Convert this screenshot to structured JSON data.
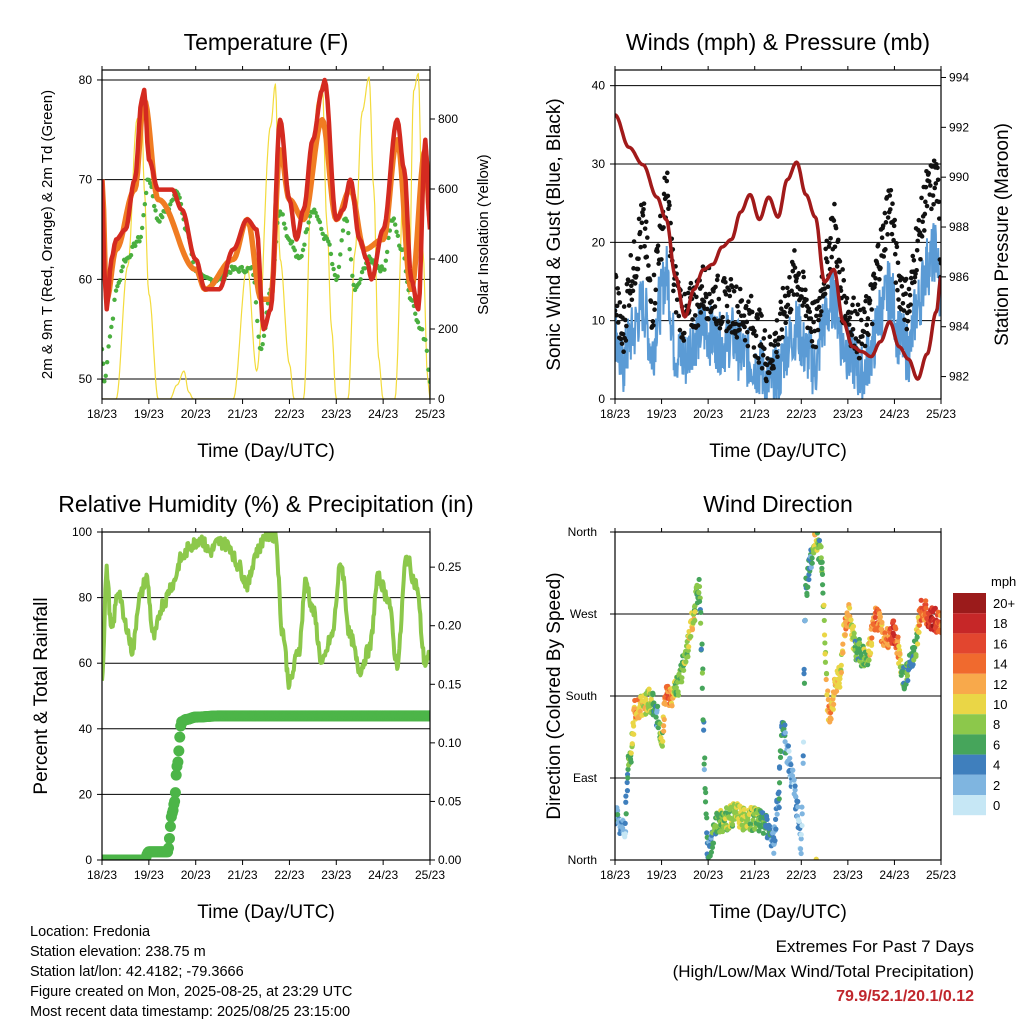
{
  "footer": {
    "location": "Location: Fredonia",
    "elevation": "Station elevation: 238.75 m",
    "latlon": "Station lat/lon: 42.4182; -79.3666",
    "created": "Figure created on Mon, 2025-08-25, at 23:29 UTC",
    "recent": "Most recent data timestamp: 2025/08/25 23:15:00"
  },
  "extremes": {
    "title": "Extremes For Past 7 Days",
    "subtitle": "(High/Low/Max Wind/Total Precipitation)",
    "values": "79.9/52.1/20.1/0.12",
    "color": "#c0272d"
  },
  "chart_data": [
    {
      "type": "line",
      "title": "Temperature (F)",
      "xlabel": "Time (Day/UTC)",
      "ylabel": "2m & 9m T (Red, Orange) & 2m Td (Green)",
      "y2label": "Solar Insolation (Yellow)",
      "x_ticks": [
        "18/23",
        "19/23",
        "20/23",
        "21/23",
        "22/23",
        "23/23",
        "24/23",
        "25/23"
      ],
      "xlim": [
        0,
        7
      ],
      "ylim": [
        48,
        81
      ],
      "y_ticks": [
        50,
        60,
        70,
        80
      ],
      "y2lim": [
        0,
        940
      ],
      "y2_ticks": [
        0,
        200,
        400,
        600,
        800
      ],
      "grid": "horizontal at left-axis ticks",
      "series": [
        {
          "name": "2m T",
          "color": "#d42a20",
          "axis": "left",
          "x": [
            0,
            0.05,
            0.1,
            0.2,
            0.3,
            0.5,
            0.7,
            0.85,
            0.9,
            1.0,
            1.2,
            1.5,
            1.7,
            2.0,
            2.2,
            2.5,
            2.8,
            3.1,
            3.3,
            3.45,
            3.6,
            3.8,
            4.0,
            4.15,
            4.3,
            4.5,
            4.7,
            4.75,
            5.0,
            5.15,
            5.3,
            5.5,
            5.65,
            5.75,
            6.0,
            6.3,
            6.45,
            6.6,
            6.75,
            6.9,
            7.0
          ],
          "y": [
            70,
            61,
            57,
            62,
            64,
            65,
            70,
            78,
            79,
            72,
            69,
            69,
            67,
            62,
            59,
            59,
            63,
            66,
            65,
            55,
            57,
            76,
            68,
            64,
            67,
            74,
            79,
            80,
            66,
            67,
            70,
            64,
            62,
            60,
            65,
            76,
            71,
            60,
            57,
            74,
            65
          ]
        },
        {
          "name": "9m T",
          "color": "#f07c22",
          "axis": "left",
          "x": [
            0,
            0.1,
            0.3,
            0.7,
            0.9,
            1.2,
            2.0,
            2.2,
            2.8,
            3.1,
            3.4,
            3.6,
            3.8,
            4.0,
            4.3,
            4.7,
            5.0,
            5.3,
            5.6,
            6.0,
            6.3,
            6.6,
            6.9,
            7.0
          ],
          "y": [
            70,
            58,
            63,
            69,
            78,
            68,
            61,
            59,
            62,
            66,
            58,
            58,
            73,
            68,
            66,
            76,
            66,
            69,
            63,
            64,
            74,
            59,
            73,
            66
          ]
        },
        {
          "name": "2m Td",
          "color": "#4aaf3f",
          "axis": "left",
          "x": [
            0,
            0.05,
            0.2,
            0.3,
            0.5,
            0.8,
            1.0,
            1.2,
            1.4,
            1.6,
            1.8,
            2.0,
            2.2,
            2.5,
            2.8,
            3.2,
            3.4,
            3.6,
            3.8,
            4.0,
            4.2,
            4.5,
            4.8,
            5.0,
            5.2,
            5.4,
            5.7,
            6.0,
            6.2,
            6.4,
            6.6,
            6.8,
            6.9,
            7.0
          ],
          "y": [
            53,
            50,
            55,
            59,
            62,
            64,
            70,
            66,
            67,
            69,
            65,
            61,
            60,
            60,
            61,
            61,
            53,
            59,
            67,
            64,
            62,
            67,
            64,
            60,
            66,
            59,
            62,
            61,
            66,
            63,
            58,
            55,
            54,
            50
          ]
        },
        {
          "name": "Solar Insolation",
          "color": "#f3db3c",
          "axis": "right",
          "x": [
            0,
            0.3,
            0.55,
            0.75,
            0.85,
            0.9,
            1.0,
            1.2,
            1.45,
            1.6,
            1.75,
            1.85,
            1.95,
            2.2,
            2.3,
            2.55,
            2.8,
            3.1,
            3.3,
            3.6,
            3.7,
            3.8,
            4.0,
            4.1,
            4.3,
            4.5,
            4.6,
            4.7,
            4.8,
            4.9,
            5.0,
            5.25,
            5.4,
            5.55,
            5.7,
            5.8,
            5.9,
            6.0,
            6.25,
            6.45,
            6.55,
            6.65,
            6.75,
            6.85,
            6.95,
            7.0
          ],
          "y": [
            0,
            0,
            380,
            800,
            840,
            600,
            300,
            0,
            0,
            40,
            80,
            20,
            0,
            0,
            0,
            0,
            0,
            380,
            80,
            780,
            900,
            400,
            100,
            0,
            0,
            720,
            850,
            900,
            500,
            200,
            0,
            0,
            420,
            820,
            920,
            600,
            120,
            0,
            0,
            640,
            300,
            880,
            930,
            420,
            60,
            0
          ]
        }
      ]
    },
    {
      "type": "scatter",
      "title": "Winds (mph) & Pressure (mb)",
      "xlabel": "Time (Day/UTC)",
      "ylabel": "Sonic Wind & Gust (Blue, Black)",
      "y2label": "Station Pressure (Maroon)",
      "x_ticks": [
        "18/23",
        "19/23",
        "20/23",
        "21/23",
        "22/23",
        "23/23",
        "24/23",
        "25/23"
      ],
      "xlim": [
        0,
        7
      ],
      "ylim": [
        0,
        42
      ],
      "y_ticks": [
        0,
        10,
        20,
        30,
        40
      ],
      "y2lim": [
        981.1,
        994.3
      ],
      "y2_ticks": [
        982,
        984,
        986,
        988,
        990,
        992,
        994
      ],
      "grid": "horizontal at left-axis ticks",
      "series": [
        {
          "name": "Wind",
          "color": "#5b9bd5",
          "axis": "left",
          "x": [
            0,
            0.15,
            0.35,
            0.6,
            0.8,
            0.95,
            1.1,
            1.3,
            1.5,
            1.7,
            1.9,
            2.1,
            2.3,
            2.5,
            2.7,
            2.9,
            3.1,
            3.3,
            3.5,
            3.7,
            3.9,
            4.1,
            4.3,
            4.5,
            4.7,
            4.9,
            5.1,
            5.3,
            5.5,
            5.7,
            5.9,
            6.1,
            6.3,
            6.5,
            6.7,
            6.9,
            7.0
          ],
          "y": [
            9,
            4,
            8,
            12,
            6,
            12,
            16,
            6,
            5,
            8,
            9,
            8,
            7,
            8,
            6,
            5,
            4,
            2,
            3,
            7,
            9,
            6,
            4,
            10,
            13,
            7,
            5,
            3,
            6,
            11,
            14,
            8,
            6,
            12,
            17,
            19,
            11
          ]
        },
        {
          "name": "Gust",
          "color": "#111111",
          "axis": "left",
          "x": [
            0,
            0.15,
            0.35,
            0.6,
            0.8,
            0.95,
            1.1,
            1.3,
            1.5,
            1.7,
            1.9,
            2.1,
            2.3,
            2.5,
            2.7,
            2.9,
            3.1,
            3.3,
            3.5,
            3.7,
            3.9,
            4.1,
            4.3,
            4.5,
            4.7,
            4.9,
            5.1,
            5.3,
            5.5,
            5.7,
            5.9,
            6.1,
            6.3,
            6.5,
            6.7,
            6.9,
            7.0
          ],
          "y": [
            14,
            8,
            16,
            22,
            12,
            20,
            26,
            14,
            10,
            12,
            14,
            13,
            12,
            12,
            11,
            10,
            8,
            5,
            8,
            13,
            16,
            12,
            9,
            16,
            22,
            13,
            10,
            8,
            12,
            19,
            25,
            15,
            12,
            20,
            26,
            28,
            18
          ]
        },
        {
          "name": "Station Pressure",
          "color": "#a11a1a",
          "axis": "right",
          "x": [
            0,
            0.3,
            0.6,
            0.9,
            1.1,
            1.3,
            1.5,
            1.7,
            1.9,
            2.1,
            2.3,
            2.5,
            2.7,
            2.9,
            3.1,
            3.3,
            3.5,
            3.7,
            3.9,
            4.1,
            4.3,
            4.5,
            4.7,
            4.9,
            5.1,
            5.3,
            5.5,
            5.7,
            5.9,
            6.1,
            6.3,
            6.5,
            6.7,
            6.9,
            7.0
          ],
          "y": [
            992.5,
            991.2,
            990.5,
            989.2,
            988.3,
            986.0,
            984.4,
            985.5,
            986.3,
            986.5,
            987.2,
            987.5,
            988.6,
            989.3,
            988.3,
            989.2,
            988.4,
            989.9,
            990.6,
            989.3,
            988.4,
            985.8,
            986.3,
            984.2,
            983.2,
            983.0,
            982.8,
            983.4,
            984.2,
            983.2,
            982.7,
            981.9,
            982.9,
            984.6,
            986.0
          ]
        }
      ]
    },
    {
      "type": "line",
      "title": "Relative Humidity (%) & Precipitation (in)",
      "xlabel": "Time (Day/UTC)",
      "ylabel": "Percent & Total Rainfall",
      "x_ticks": [
        "18/23",
        "19/23",
        "20/23",
        "21/23",
        "22/23",
        "23/23",
        "24/23",
        "25/23"
      ],
      "xlim": [
        0,
        7
      ],
      "ylim": [
        0,
        100
      ],
      "y_ticks": [
        0,
        20,
        40,
        60,
        80,
        100
      ],
      "y2lim": [
        0,
        0.28
      ],
      "y2_ticks": [
        "0.00",
        "0.05",
        "0.10",
        "0.15",
        "0.20",
        "0.25"
      ],
      "grid": "horizontal at left-axis ticks",
      "series": [
        {
          "name": "Relative Humidity",
          "color": "#8cc84b",
          "axis": "left",
          "x": [
            0,
            0.1,
            0.2,
            0.35,
            0.5,
            0.65,
            0.8,
            0.95,
            1.1,
            1.3,
            1.5,
            1.7,
            1.9,
            2.1,
            2.3,
            2.5,
            2.7,
            2.9,
            3.1,
            3.3,
            3.5,
            3.7,
            3.85,
            4.0,
            4.2,
            4.35,
            4.5,
            4.7,
            4.9,
            5.1,
            5.3,
            5.5,
            5.7,
            5.9,
            6.1,
            6.3,
            6.5,
            6.7,
            6.9,
            7.0
          ],
          "y": [
            56,
            88,
            70,
            82,
            72,
            64,
            80,
            86,
            68,
            78,
            84,
            92,
            96,
            98,
            94,
            97,
            96,
            90,
            84,
            94,
            99,
            99,
            70,
            54,
            64,
            85,
            76,
            60,
            68,
            90,
            68,
            58,
            64,
            86,
            80,
            60,
            92,
            84,
            60,
            62
          ]
        },
        {
          "name": "Total Rainfall",
          "color": "#4cb548",
          "axis": "right",
          "x": [
            0,
            0.4,
            0.8,
            0.9,
            1.0,
            1.2,
            1.4,
            1.5,
            1.55,
            1.6,
            1.7,
            1.8,
            2.0,
            2.5,
            3.0,
            4.0,
            5.0,
            6.0,
            7.0
          ],
          "y": [
            0,
            0,
            0,
            0,
            0.007,
            0.007,
            0.007,
            0.04,
            0.05,
            0.08,
            0.118,
            0.12,
            0.122,
            0.123,
            0.123,
            0.123,
            0.123,
            0.123,
            0.123
          ]
        }
      ]
    },
    {
      "type": "scatter",
      "title": "Wind Direction",
      "xlabel": "Time (Day/UTC)",
      "ylabel": "Direction (Colored By Speed)",
      "x_ticks": [
        "18/23",
        "19/23",
        "20/23",
        "21/23",
        "22/23",
        "23/23",
        "24/23",
        "25/23"
      ],
      "xlim": [
        0,
        7
      ],
      "y_ticks": [
        "North",
        "East",
        "South",
        "West",
        "North"
      ],
      "ylim": [
        0,
        360
      ],
      "grid": "horizontal at direction ticks",
      "legend": {
        "title": "mph",
        "labels": [
          "20+",
          "18",
          "16",
          "14",
          "12",
          "10",
          "8",
          "6",
          "4",
          "2",
          "0"
        ],
        "colors": [
          "#9b1b1b",
          "#c62728",
          "#e2462f",
          "#f06a2e",
          "#f8a94b",
          "#ead646",
          "#8cc84b",
          "#46a55b",
          "#3f7fbd",
          "#7fb5e0",
          "#c6e7f5"
        ],
        "position": "right"
      },
      "series": [
        {
          "name": "Direction",
          "x": [
            0,
            0.1,
            0.2,
            0.3,
            0.45,
            0.6,
            0.75,
            0.9,
            1.0,
            1.1,
            1.2,
            1.35,
            1.5,
            1.65,
            1.8,
            2.0,
            2.2,
            2.4,
            2.6,
            2.8,
            3.0,
            3.2,
            3.4,
            3.5,
            3.6,
            3.7,
            3.8,
            3.9,
            4.0,
            4.1,
            4.2,
            4.3,
            4.4,
            4.6,
            4.8,
            5.0,
            5.2,
            5.4,
            5.6,
            5.8,
            6.0,
            6.2,
            6.4,
            6.6,
            6.8,
            7.0
          ],
          "y": [
            50,
            40,
            30,
            110,
            165,
            170,
            175,
            160,
            130,
            185,
            180,
            190,
            220,
            260,
            300,
            10,
            40,
            45,
            50,
            45,
            45,
            40,
            20,
            60,
            150,
            120,
            90,
            60,
            20,
            300,
            330,
            350,
            340,
            160,
            200,
            270,
            230,
            220,
            265,
            245,
            250,
            200,
            225,
            275,
            265,
            260
          ],
          "speed": [
            4,
            3,
            2,
            6,
            12,
            10,
            9,
            4,
            8,
            15,
            12,
            6,
            8,
            10,
            6,
            4,
            7,
            8,
            9,
            9,
            8,
            6,
            3,
            4,
            5,
            3,
            2,
            3,
            1,
            5,
            4,
            10,
            6,
            12,
            10,
            12,
            6,
            8,
            14,
            12,
            16,
            6,
            5,
            14,
            18,
            14
          ]
        }
      ]
    }
  ]
}
